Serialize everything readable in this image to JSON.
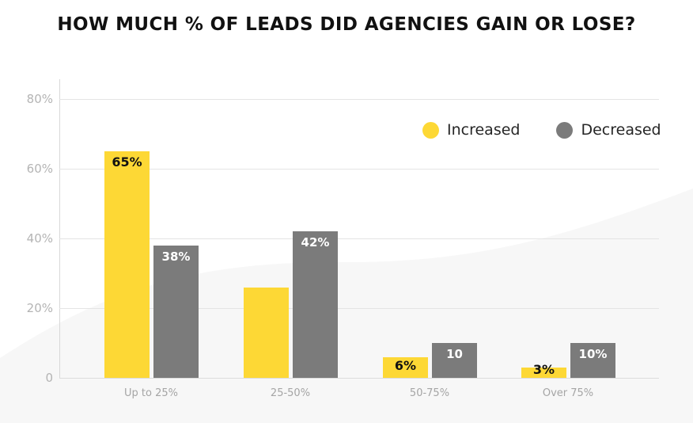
{
  "title": "HOW MUCH % OF LEADS DID AGENCIES GAIN OR LOSE?",
  "legend": {
    "items": [
      {
        "label": "Increased",
        "color": "#FDD835"
      },
      {
        "label": "Decreased",
        "color": "#7B7B7B"
      }
    ]
  },
  "chart_data": {
    "type": "bar",
    "title": "HOW MUCH % OF LEADS DID AGENCIES GAIN OR LOSE?",
    "categories": [
      "Up to 25%",
      "25-50%",
      "50-75%",
      "Over 75%"
    ],
    "series": [
      {
        "name": "Increased",
        "color": "#FDD835",
        "values": [
          65,
          26,
          6,
          3
        ],
        "labels": [
          "65%",
          "",
          "6%",
          "3%"
        ],
        "label_style": "dark"
      },
      {
        "name": "Decreased",
        "color": "#7B7B7B",
        "values": [
          38,
          42,
          10,
          10
        ],
        "labels": [
          "38%",
          "42%",
          "10",
          "10%"
        ],
        "label_style": "light"
      }
    ],
    "xlabel": "",
    "ylabel": "",
    "ylim": [
      0,
      88
    ],
    "ytick_labels": [
      "80%",
      "60%",
      "40%",
      "20%",
      "0"
    ],
    "ytick_values": [
      80,
      60,
      40,
      20,
      0
    ],
    "grid": true,
    "legend_position": "upper right inside"
  },
  "colors": {
    "increased": "#FDD835",
    "decreased": "#7B7B7B",
    "background_wave": "#f7f7f7",
    "gridline": "#e4e4e4",
    "title_text": "#111111",
    "axis_tick_text": "#b4b4b4",
    "category_text": "#a5a5a5"
  }
}
